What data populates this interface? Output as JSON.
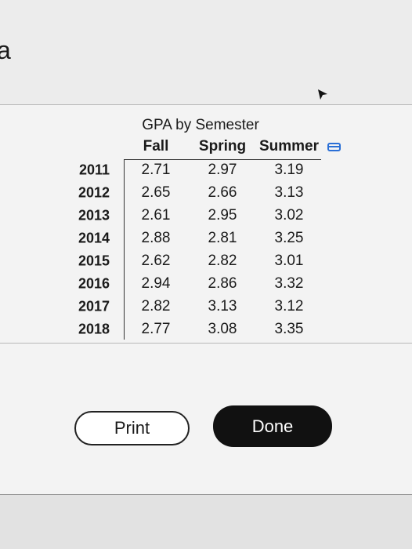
{
  "header": {
    "text": "a"
  },
  "table": {
    "title": "GPA by Semester",
    "columns": [
      "Fall",
      "Spring",
      "Summer"
    ],
    "rows": [
      [
        "2011",
        2.71,
        2.97,
        3.19
      ],
      [
        "2012",
        2.65,
        2.66,
        3.13
      ],
      [
        "2013",
        2.61,
        2.95,
        3.02
      ],
      [
        "2014",
        2.88,
        2.81,
        3.25
      ],
      [
        "2015",
        2.62,
        2.82,
        3.01
      ],
      [
        "2016",
        2.94,
        2.86,
        3.32
      ],
      [
        "2017",
        2.82,
        3.13,
        3.12
      ],
      [
        "2018",
        2.77,
        3.08,
        3.35
      ]
    ]
  },
  "buttons": {
    "print": "Print",
    "done": "Done"
  }
}
